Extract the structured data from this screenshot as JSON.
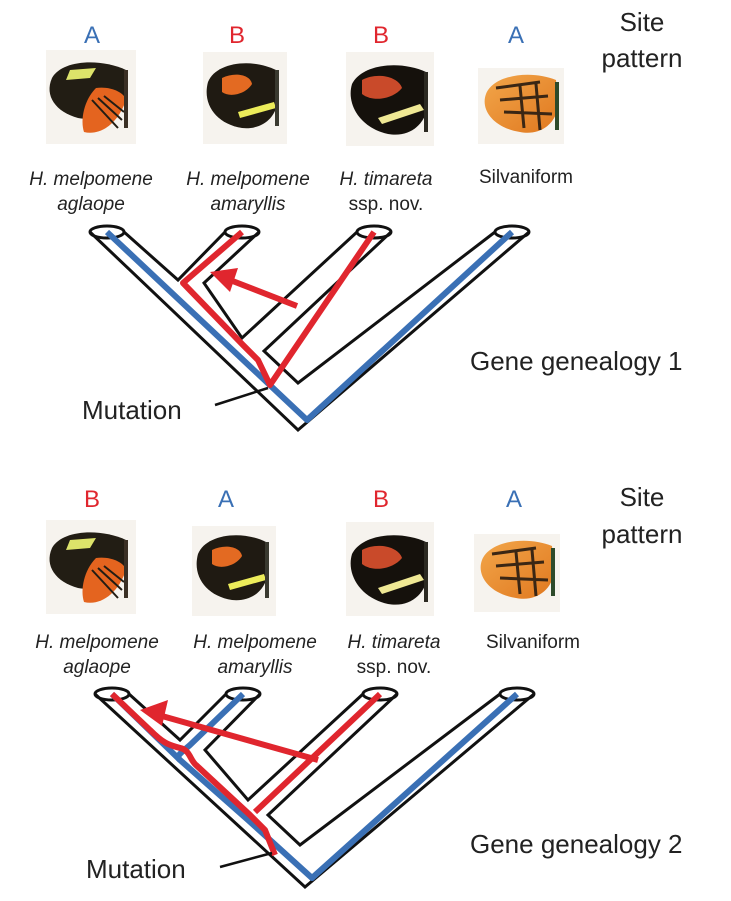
{
  "colors": {
    "pattern_A": "#3a70b5",
    "pattern_B": "#e0262e",
    "outline": "#111111"
  },
  "panels": [
    {
      "site_pattern_heading": [
        "Site",
        "pattern"
      ],
      "site_pattern": [
        "A",
        "B",
        "B",
        "A"
      ],
      "taxa": [
        {
          "line1": "H. melpomene",
          "line2": "aglaope",
          "line1_italic": true,
          "line2_italic": true
        },
        {
          "line1": "H. melpomene",
          "line2": "amaryllis",
          "line1_italic": true,
          "line2_italic": true
        },
        {
          "line1": "H. timareta",
          "line2": "ssp. nov.",
          "line1_italic": true,
          "line2_italic": false
        },
        {
          "line1": "Silvaniform",
          "line2": "",
          "line1_italic": false,
          "line2_italic": false
        }
      ],
      "genealogy_label": "Gene genealogy 1",
      "mutation_label": "Mutation"
    },
    {
      "site_pattern_heading": [
        "Site",
        "pattern"
      ],
      "site_pattern": [
        "B",
        "A",
        "B",
        "A"
      ],
      "taxa": [
        {
          "line1": "H. melpomene",
          "line2": "aglaope",
          "line1_italic": true,
          "line2_italic": true
        },
        {
          "line1": "H. melpomene",
          "line2": "amaryllis",
          "line1_italic": true,
          "line2_italic": true
        },
        {
          "line1": "H. timareta",
          "line2": "ssp. nov.",
          "line1_italic": true,
          "line2_italic": false
        },
        {
          "line1": "Silvaniform",
          "line2": "",
          "line1_italic": false,
          "line2_italic": false
        }
      ],
      "genealogy_label": "Gene genealogy 2",
      "mutation_label": "Mutation"
    }
  ]
}
